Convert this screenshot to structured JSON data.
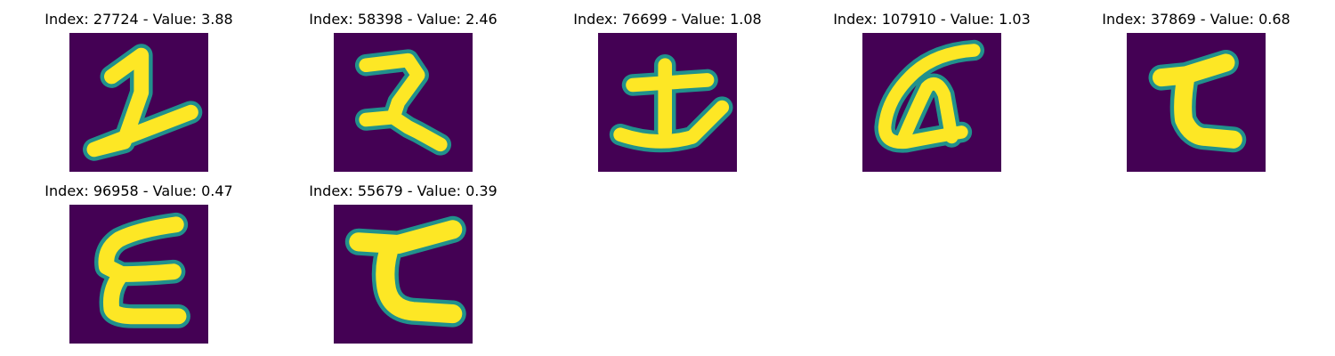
{
  "colors": {
    "background": "#440154",
    "edge": "#21918c",
    "mid": "#5ec962",
    "stroke": "#fde725"
  },
  "panels": [
    {
      "title": "Index: 27724 - Value: 3.88"
    },
    {
      "title": "Index: 58398 - Value: 2.46"
    },
    {
      "title": "Index: 76699 - Value: 1.08"
    },
    {
      "title": "Index: 107910 - Value: 1.03"
    },
    {
      "title": "Index: 37869 - Value: 0.68"
    },
    {
      "title": "Index: 96958 - Value: 0.47"
    },
    {
      "title": "Index: 55679 - Value: 0.39"
    }
  ]
}
